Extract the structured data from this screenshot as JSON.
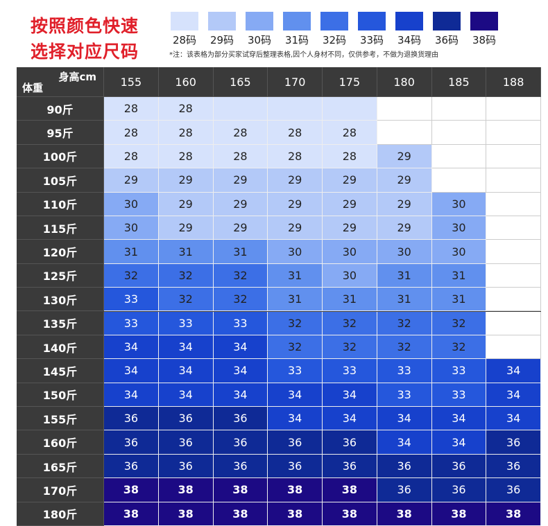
{
  "header": {
    "title_lines": [
      "按照颜色快速",
      "选择对应尺码"
    ],
    "legend": [
      {
        "label": "28码",
        "color": "#d6e2fc"
      },
      {
        "label": "29码",
        "color": "#b3c9f8"
      },
      {
        "label": "30码",
        "color": "#86aaf4"
      },
      {
        "label": "31码",
        "color": "#6190ee"
      },
      {
        "label": "32码",
        "color": "#3c6fe6"
      },
      {
        "label": "33码",
        "color": "#2557dc"
      },
      {
        "label": "34码",
        "color": "#1741cc"
      },
      {
        "label": "36码",
        "color": "#0f2a96"
      },
      {
        "label": "38码",
        "color": "#1c0a84"
      }
    ],
    "note": "*注：该表格为部分买家试穿后整理表格,因个人身材不同，仅供参考，不做为退换货理由"
  },
  "table": {
    "corner_top": "身高cm",
    "corner_bottom": "体重",
    "columns": [
      "155",
      "160",
      "165",
      "170",
      "175",
      "180",
      "185",
      "188"
    ],
    "rows": [
      {
        "label": "90斤",
        "cells": [
          "28",
          "28",
          {
            "fill": "#d6e2fc"
          },
          {
            "fill": "#d6e2fc"
          },
          {
            "fill": "#d6e2fc"
          },
          null,
          null,
          null
        ]
      },
      {
        "label": "95斤",
        "cells": [
          "28",
          "28",
          "28",
          "28",
          "28",
          null,
          null,
          null
        ]
      },
      {
        "label": "100斤",
        "cells": [
          "28",
          "28",
          "28",
          "28",
          "28",
          "29",
          null,
          null
        ]
      },
      {
        "label": "105斤",
        "cells": [
          "29",
          "29",
          "29",
          "29",
          "29",
          "29",
          null,
          null
        ]
      },
      {
        "label": "110斤",
        "cells": [
          "30",
          "29",
          "29",
          "29",
          "29",
          "29",
          "30",
          null
        ]
      },
      {
        "label": "115斤",
        "cells": [
          "30",
          "29",
          "29",
          "29",
          "29",
          "29",
          "30",
          null
        ]
      },
      {
        "label": "120斤",
        "cells": [
          "31",
          "31",
          "31",
          "30",
          "30",
          "30",
          "30",
          null
        ]
      },
      {
        "label": "125斤",
        "cells": [
          "32",
          "32",
          "32",
          "31",
          "30",
          "31",
          "31",
          null
        ]
      },
      {
        "label": "130斤",
        "cells": [
          "33",
          "32",
          "32",
          "31",
          "31",
          "31",
          "31",
          null
        ]
      },
      {
        "label": "135斤",
        "cells": [
          "33",
          "33",
          "33",
          "32",
          "32",
          "32",
          "32",
          null
        ]
      },
      {
        "label": "140斤",
        "cells": [
          "34",
          "34",
          "34",
          "32",
          "32",
          "32",
          "32",
          null
        ]
      },
      {
        "label": "145斤",
        "cells": [
          "34",
          "34",
          "34",
          "33",
          "33",
          "33",
          "33",
          "34"
        ]
      },
      {
        "label": "150斤",
        "cells": [
          "34",
          "34",
          "34",
          "34",
          "34",
          "33",
          "33",
          "34"
        ]
      },
      {
        "label": "155斤",
        "cells": [
          "36",
          "36",
          "36",
          "34",
          "34",
          "34",
          "34",
          "34"
        ]
      },
      {
        "label": "160斤",
        "cells": [
          "36",
          "36",
          "36",
          "36",
          "36",
          "34",
          "34",
          "36"
        ]
      },
      {
        "label": "165斤",
        "cells": [
          "36",
          "36",
          "36",
          "36",
          "36",
          "36",
          "36",
          "36"
        ]
      },
      {
        "label": "170斤",
        "cells": [
          "38",
          "38",
          "38",
          "38",
          "38",
          "36",
          "36",
          "36"
        ]
      },
      {
        "label": "180斤",
        "cells": [
          "38",
          "38",
          "38",
          "38",
          "38",
          "38",
          "38",
          "38"
        ]
      }
    ]
  }
}
